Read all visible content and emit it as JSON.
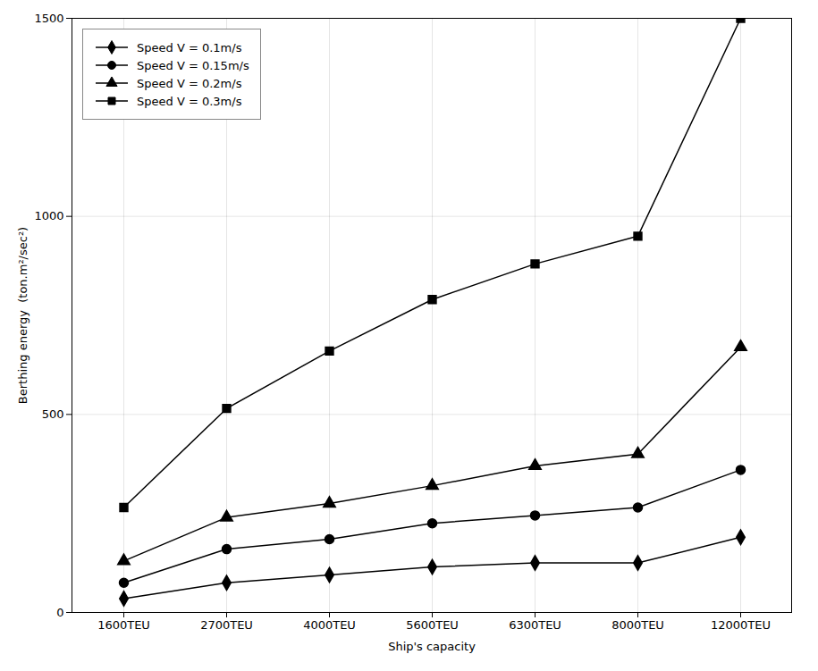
{
  "chart_data": {
    "type": "line",
    "xlabel": "Ship's capacity",
    "ylabel": "Berthing energy  (ton.m²/sec²)",
    "categories": [
      "1600TEU",
      "2700TEU",
      "4000TEU",
      "5600TEU",
      "6300TEU",
      "8000TEU",
      "12000TEU"
    ],
    "series": [
      {
        "name": "Speed V = 0.1m/s",
        "color": "#000000",
        "marker": "diamond",
        "line_style": "solid",
        "values": [
          35,
          75,
          95,
          115,
          125,
          125,
          190
        ]
      },
      {
        "name": "Speed V = 0.15m/s",
        "color": "#000000",
        "marker": "circle",
        "line_style": "solid",
        "values": [
          75,
          160,
          185,
          225,
          245,
          265,
          360
        ]
      },
      {
        "name": "Speed V = 0.2m/s",
        "color": "#000000",
        "marker": "triangle",
        "line_style": "solid",
        "values": [
          130,
          240,
          275,
          320,
          370,
          400,
          670
        ]
      },
      {
        "name": "Speed V = 0.3m/s",
        "color": "#000000",
        "marker": "square",
        "line_style": "solid",
        "values": [
          265,
          515,
          660,
          790,
          880,
          950,
          1500
        ]
      }
    ],
    "ylim": [
      0,
      1500
    ],
    "yticks": [
      0,
      500,
      1000,
      1500
    ],
    "grid": true,
    "legend": "upper left"
  }
}
